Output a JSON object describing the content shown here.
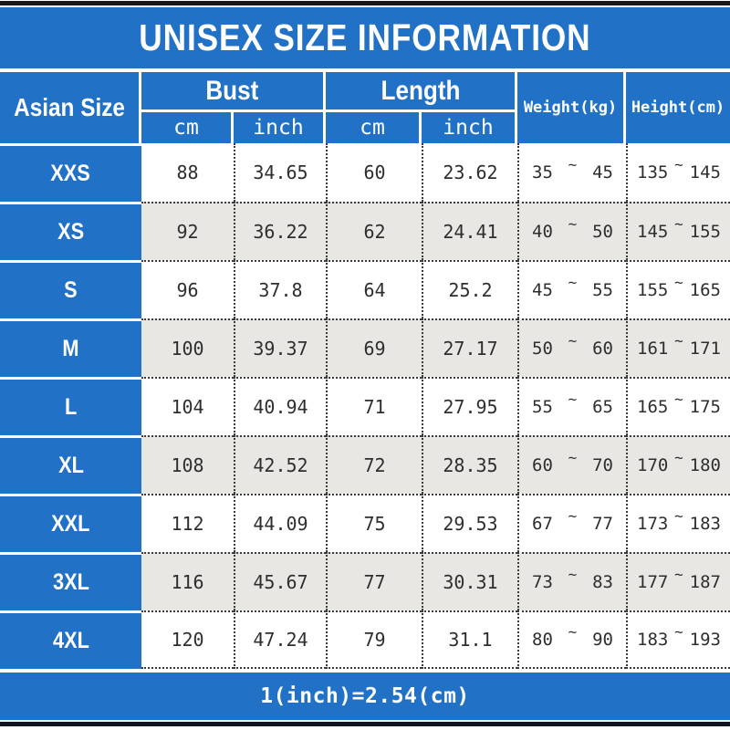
{
  "title": "UNISEX SIZE INFORMATION",
  "footer": {
    "note": "1(inch)=2.54(cm)"
  },
  "colors": {
    "accent_blue": "#2172c6",
    "row_alt_gray": "#e8e7e4",
    "bar_black": "#17171b",
    "text": "#2e2e2e"
  },
  "table": {
    "tilde": "~",
    "header": {
      "asian_size": "Asian Size",
      "bust": "Bust",
      "length": "Length",
      "weight": "Weight(kg)",
      "height": "Height(cm)",
      "subs": [
        "cm",
        "inch",
        "cm",
        "inch"
      ]
    },
    "rows": [
      {
        "size": "XXS",
        "bust_cm": "88",
        "bust_inch": "34.65",
        "len_cm": "60",
        "len_inch": "23.62",
        "w_lo": "35",
        "w_hi": "45",
        "h_lo": "135",
        "h_hi": "145"
      },
      {
        "size": "XS",
        "bust_cm": "92",
        "bust_inch": "36.22",
        "len_cm": "62",
        "len_inch": "24.41",
        "w_lo": "40",
        "w_hi": "50",
        "h_lo": "145",
        "h_hi": "155"
      },
      {
        "size": "S",
        "bust_cm": "96",
        "bust_inch": "37.8",
        "len_cm": "64",
        "len_inch": "25.2",
        "w_lo": "45",
        "w_hi": "55",
        "h_lo": "155",
        "h_hi": "165"
      },
      {
        "size": "M",
        "bust_cm": "100",
        "bust_inch": "39.37",
        "len_cm": "69",
        "len_inch": "27.17",
        "w_lo": "50",
        "w_hi": "60",
        "h_lo": "161",
        "h_hi": "171"
      },
      {
        "size": "L",
        "bust_cm": "104",
        "bust_inch": "40.94",
        "len_cm": "71",
        "len_inch": "27.95",
        "w_lo": "55",
        "w_hi": "65",
        "h_lo": "165",
        "h_hi": "175"
      },
      {
        "size": "XL",
        "bust_cm": "108",
        "bust_inch": "42.52",
        "len_cm": "72",
        "len_inch": "28.35",
        "w_lo": "60",
        "w_hi": "70",
        "h_lo": "170",
        "h_hi": "180"
      },
      {
        "size": "XXL",
        "bust_cm": "112",
        "bust_inch": "44.09",
        "len_cm": "75",
        "len_inch": "29.53",
        "w_lo": "67",
        "w_hi": "77",
        "h_lo": "173",
        "h_hi": "183"
      },
      {
        "size": "3XL",
        "bust_cm": "116",
        "bust_inch": "45.67",
        "len_cm": "77",
        "len_inch": "30.31",
        "w_lo": "73",
        "w_hi": "83",
        "h_lo": "177",
        "h_hi": "187"
      },
      {
        "size": "4XL",
        "bust_cm": "120",
        "bust_inch": "47.24",
        "len_cm": "79",
        "len_inch": "31.1",
        "w_lo": "80",
        "w_hi": "90",
        "h_lo": "183",
        "h_hi": "193"
      }
    ]
  },
  "chart_data": {
    "type": "table",
    "title": "UNISEX SIZE INFORMATION",
    "columns": [
      "Asian Size",
      "Bust cm",
      "Bust inch",
      "Length cm",
      "Length inch",
      "Weight(kg)",
      "Height(cm)"
    ],
    "rows": [
      [
        "XXS",
        88,
        34.65,
        60,
        23.62,
        "35~45",
        "135~145"
      ],
      [
        "XS",
        92,
        36.22,
        62,
        24.41,
        "40~50",
        "145~155"
      ],
      [
        "S",
        96,
        37.8,
        64,
        25.2,
        "45~55",
        "155~165"
      ],
      [
        "M",
        100,
        39.37,
        69,
        27.17,
        "50~60",
        "161~171"
      ],
      [
        "L",
        104,
        40.94,
        71,
        27.95,
        "55~65",
        "165~175"
      ],
      [
        "XL",
        108,
        42.52,
        72,
        28.35,
        "60~70",
        "170~180"
      ],
      [
        "XXL",
        112,
        44.09,
        75,
        29.53,
        "67~77",
        "173~183"
      ],
      [
        "3XL",
        116,
        45.67,
        77,
        30.31,
        "73~83",
        "177~187"
      ],
      [
        "4XL",
        120,
        47.24,
        79,
        31.1,
        "80~90",
        "183~193"
      ]
    ],
    "footnote": "1(inch)=2.54(cm)"
  }
}
